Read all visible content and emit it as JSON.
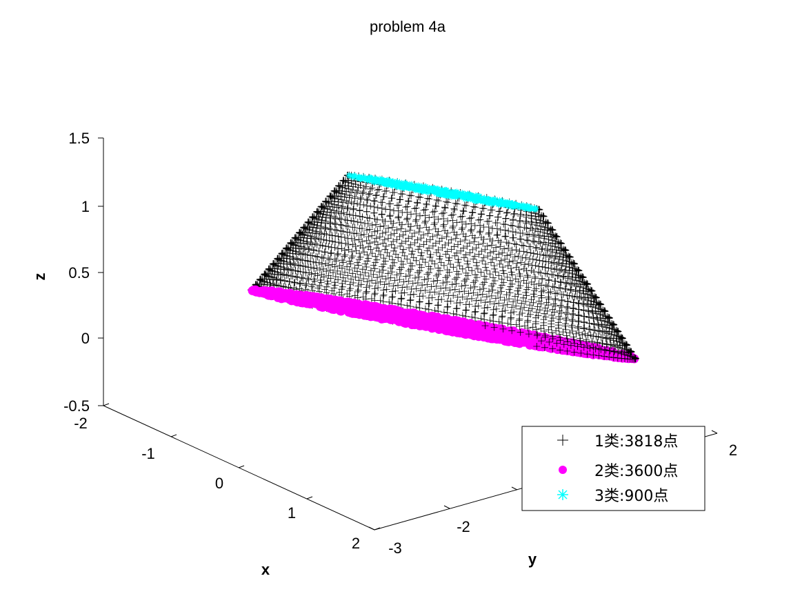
{
  "chart_data": {
    "type": "scatter",
    "projection": "3d",
    "title": "problem 4a",
    "xlabel": "x",
    "ylabel": "y",
    "zlabel": "z",
    "xlim": [
      -2,
      2
    ],
    "ylim": [
      -3,
      2
    ],
    "zlim": [
      -0.5,
      1.5
    ],
    "x_ticks": [
      "-2",
      "-1",
      "0",
      "1",
      "2"
    ],
    "y_ticks": [
      "-3",
      "-2",
      "2"
    ],
    "z_ticks": [
      "1.5",
      "1",
      "0.5",
      "0",
      "-0.5"
    ],
    "grid": false,
    "legend_position": "bottom-right",
    "series": [
      {
        "name": "1类:3818点",
        "marker": "plus",
        "color": "#000000",
        "count": 3818,
        "shape": "conical frustum surface",
        "bottom_radius": 2.0,
        "top_radius": 1.0,
        "z_range": [
          0,
          1
        ]
      },
      {
        "name": "2类:3600点",
        "marker": "filled-circle",
        "color": "#ff00ff",
        "count": 3600,
        "shape": "disk",
        "radius": 2.0,
        "z": 0
      },
      {
        "name": "3类:900点",
        "marker": "asterisk",
        "color": "#00ffff",
        "count": 900,
        "shape": "disk",
        "radius": 1.0,
        "z": 1
      }
    ]
  }
}
